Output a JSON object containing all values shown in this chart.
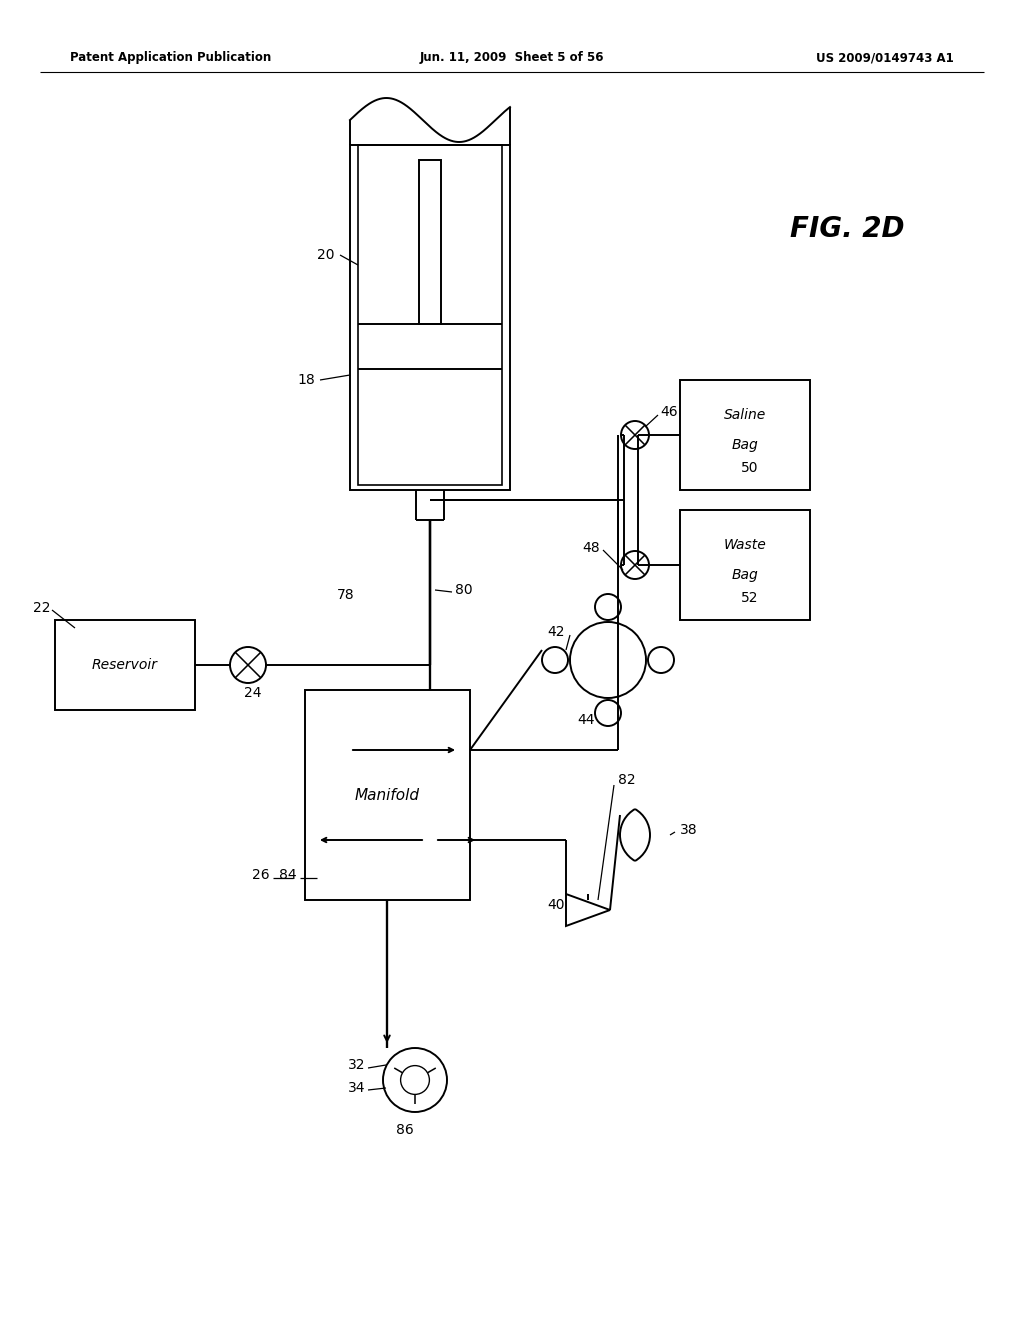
{
  "bg_color": "#ffffff",
  "header_left": "Patent Application Publication",
  "header_mid": "Jun. 11, 2009  Sheet 5 of 56",
  "header_right": "US 2009/0149743 A1",
  "fig_label": "FIG. 2D",
  "lw": 1.4
}
